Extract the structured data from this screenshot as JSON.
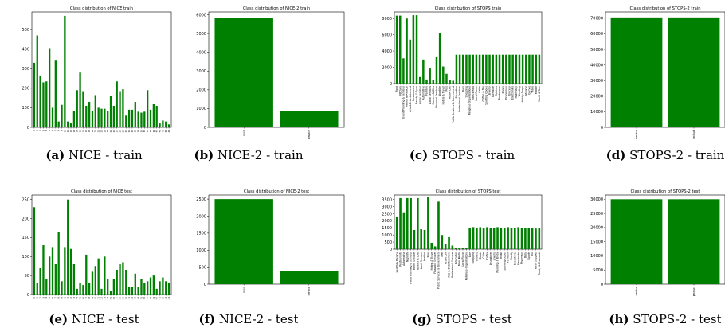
{
  "colors": {
    "bar": "#008000",
    "axes": "#000000",
    "text": "#000000"
  },
  "panels": [
    {
      "caption_letter": "(a)",
      "caption_text": "NICE - train"
    },
    {
      "caption_letter": "(b)",
      "caption_text": "NICE-2 - train"
    },
    {
      "caption_letter": "(c)",
      "caption_text": "STOPS - train"
    },
    {
      "caption_letter": "(d)",
      "caption_text": "STOPS-2 - train"
    },
    {
      "caption_letter": "(e)",
      "caption_text": "NICE - test"
    },
    {
      "caption_letter": "(f)",
      "caption_text": "NICE-2 - test"
    },
    {
      "caption_letter": "(g)",
      "caption_text": "STOPS - test"
    },
    {
      "caption_letter": "(h)",
      "caption_text": "STOPS-2 - test"
    }
  ],
  "chart_data": [
    {
      "type": "bar",
      "title": "Class distribution of NICE train",
      "ylim": [
        0,
        590
      ],
      "yticks": [
        0,
        100,
        200,
        300,
        400,
        500
      ],
      "categories": [
        "0",
        "1",
        "2",
        "3",
        "4",
        "5",
        "6",
        "7",
        "8",
        "9",
        "10",
        "11",
        "12",
        "13",
        "14",
        "15",
        "16",
        "17",
        "18",
        "19",
        "20",
        "21",
        "22",
        "23",
        "24",
        "25",
        "26",
        "27",
        "28",
        "29",
        "30",
        "31",
        "32",
        "33",
        "34",
        "35",
        "36",
        "37",
        "38",
        "39",
        "40",
        "41",
        "42",
        "43",
        "44"
      ],
      "values": [
        330,
        470,
        265,
        230,
        235,
        405,
        100,
        345,
        30,
        115,
        570,
        30,
        20,
        85,
        190,
        280,
        185,
        110,
        130,
        85,
        165,
        100,
        95,
        95,
        85,
        160,
        110,
        235,
        185,
        195,
        60,
        90,
        90,
        130,
        80,
        75,
        80,
        190,
        90,
        120,
        110,
        20,
        35,
        30,
        15
      ],
      "tick_label_style": "tiny"
    },
    {
      "type": "bar",
      "title": "Class distribution of NICE-2 train",
      "ylim": [
        0,
        6150
      ],
      "yticks": [
        0,
        1000,
        2000,
        3000,
        4000,
        5000,
        6000
      ],
      "categories": [
        "good",
        "service"
      ],
      "values": [
        5850,
        880
      ]
    },
    {
      "type": "bar",
      "title": "Class distribution of STOPS train",
      "ylim": [
        0,
        8800
      ],
      "yticks": [
        0,
        2000,
        4000,
        6000,
        8000
      ],
      "categories": [
        "Food",
        "Kitchen",
        "Event Planning & Services",
        "Health & Medical",
        "Arts & Entertainment",
        "Restaurants",
        "Beauty & Spas",
        "Home Services",
        "Automotive",
        "Fashion",
        "Local Services",
        "Flowers & Gifts",
        "Financial Services",
        "Nightlife",
        "Hotels & Travel",
        "Pets",
        "Active Life",
        "Public Services & Government",
        "Education",
        "Professional Services",
        "Bars",
        "Shopping",
        "Religious Organizations",
        "Mass Media",
        "Local Flavor",
        "Cafes",
        "Coffee & Tea",
        "Sporting Goods",
        "Jewelry",
        "Furniture",
        "Children",
        "Bookstores",
        "Books",
        "Drugstores",
        "Grocery",
        "Electronics",
        "Pharmacy",
        "Wedding",
        "Hobby Shops",
        "Musical",
        "Games",
        "Video",
        "Mobile",
        "World & Tour"
      ],
      "values": [
        8350,
        8350,
        3100,
        8000,
        5400,
        8400,
        8400,
        800,
        2950,
        500,
        1850,
        400,
        3300,
        6200,
        2100,
        1200,
        400,
        350,
        3550,
        3550,
        3550,
        3550,
        3550,
        3550,
        3550,
        3550,
        3550,
        3550,
        3550,
        3550,
        3550,
        3550,
        3550,
        3550,
        3550,
        3550,
        3550,
        3550,
        3550,
        3550,
        3550,
        3550,
        3550,
        3550
      ]
    },
    {
      "type": "bar",
      "title": "Class distribution of STOPS-2 train",
      "ylim": [
        0,
        74000
      ],
      "yticks": [
        0,
        10000,
        20000,
        30000,
        40000,
        50000,
        60000,
        70000
      ],
      "categories": [
        "service",
        "product"
      ],
      "values": [
        70500,
        70500
      ]
    },
    {
      "type": "bar",
      "title": "Class distribution of NICE test",
      "ylim": [
        0,
        262
      ],
      "yticks": [
        0,
        50,
        100,
        150,
        200,
        250
      ],
      "categories": [
        "0",
        "1",
        "2",
        "3",
        "4",
        "5",
        "6",
        "7",
        "8",
        "9",
        "10",
        "11",
        "12",
        "13",
        "14",
        "15",
        "16",
        "17",
        "18",
        "19",
        "20",
        "21",
        "22",
        "23",
        "24",
        "25",
        "26",
        "27",
        "28",
        "29",
        "30",
        "31",
        "32",
        "33",
        "34",
        "35",
        "36",
        "37",
        "38",
        "39",
        "40",
        "41",
        "42",
        "43",
        "44"
      ],
      "values": [
        230,
        30,
        70,
        130,
        40,
        100,
        125,
        80,
        165,
        35,
        125,
        250,
        120,
        80,
        15,
        30,
        25,
        105,
        30,
        60,
        75,
        95,
        15,
        100,
        40,
        10,
        40,
        65,
        80,
        85,
        65,
        20,
        20,
        55,
        20,
        40,
        30,
        35,
        45,
        50,
        15,
        35,
        45,
        35,
        30
      ],
      "tick_label_style": "tiny"
    },
    {
      "type": "bar",
      "title": "Class distribution of NICE-2 test",
      "ylim": [
        0,
        2620
      ],
      "yticks": [
        0,
        500,
        1000,
        1500,
        2000,
        2500
      ],
      "categories": [
        "good",
        "service"
      ],
      "values": [
        2500,
        380
      ]
    },
    {
      "type": "bar",
      "title": "Class distribution of STOPS test",
      "ylim": [
        0,
        3820
      ],
      "yticks": [
        0,
        500,
        1000,
        1500,
        2000,
        2500,
        3000,
        3500
      ],
      "categories": [
        "Health & Medical",
        "Restaurants",
        "Automotive",
        "Nightlife",
        "Event Planning & Services",
        "Home Services",
        "Beauty & Spas",
        "Local Services",
        "Fashion",
        "Food",
        "Hotels & Travel",
        "Financial Services",
        "Public Services & Government",
        "Pets",
        "Active Life",
        "Arts & Entertainment",
        "Professional Services",
        "Education",
        "Mass Media",
        "Local Flavor",
        "Religious Organizations",
        "Bars",
        "Shopping",
        "Grocery",
        "Books",
        "Cafes",
        "Coffee",
        "Drugstores",
        "Jewelry",
        "Wedding & Bridal",
        "Music",
        "Sporting Goods",
        "Furniture",
        "Charity",
        "Bookstores",
        "Electronics",
        "Pharmacy",
        "Baby",
        "Sports",
        "Tour",
        "Party Supplies",
        "Candy & Chocolate"
      ],
      "values": [
        2300,
        3600,
        2600,
        3600,
        3600,
        1350,
        3600,
        1400,
        1350,
        3700,
        450,
        200,
        3350,
        1000,
        350,
        850,
        250,
        100,
        80,
        60,
        60,
        1500,
        1550,
        1500,
        1550,
        1500,
        1550,
        1500,
        1500,
        1550,
        1500,
        1500,
        1550,
        1500,
        1500,
        1550,
        1500,
        1500,
        1500,
        1500,
        1450,
        1500
      ]
    },
    {
      "type": "bar",
      "title": "Class distribution of STOPS-2 test",
      "ylim": [
        0,
        31500
      ],
      "yticks": [
        0,
        5000,
        10000,
        15000,
        20000,
        25000,
        30000
      ],
      "categories": [
        "service",
        "product"
      ],
      "values": [
        30000,
        30000
      ]
    }
  ]
}
